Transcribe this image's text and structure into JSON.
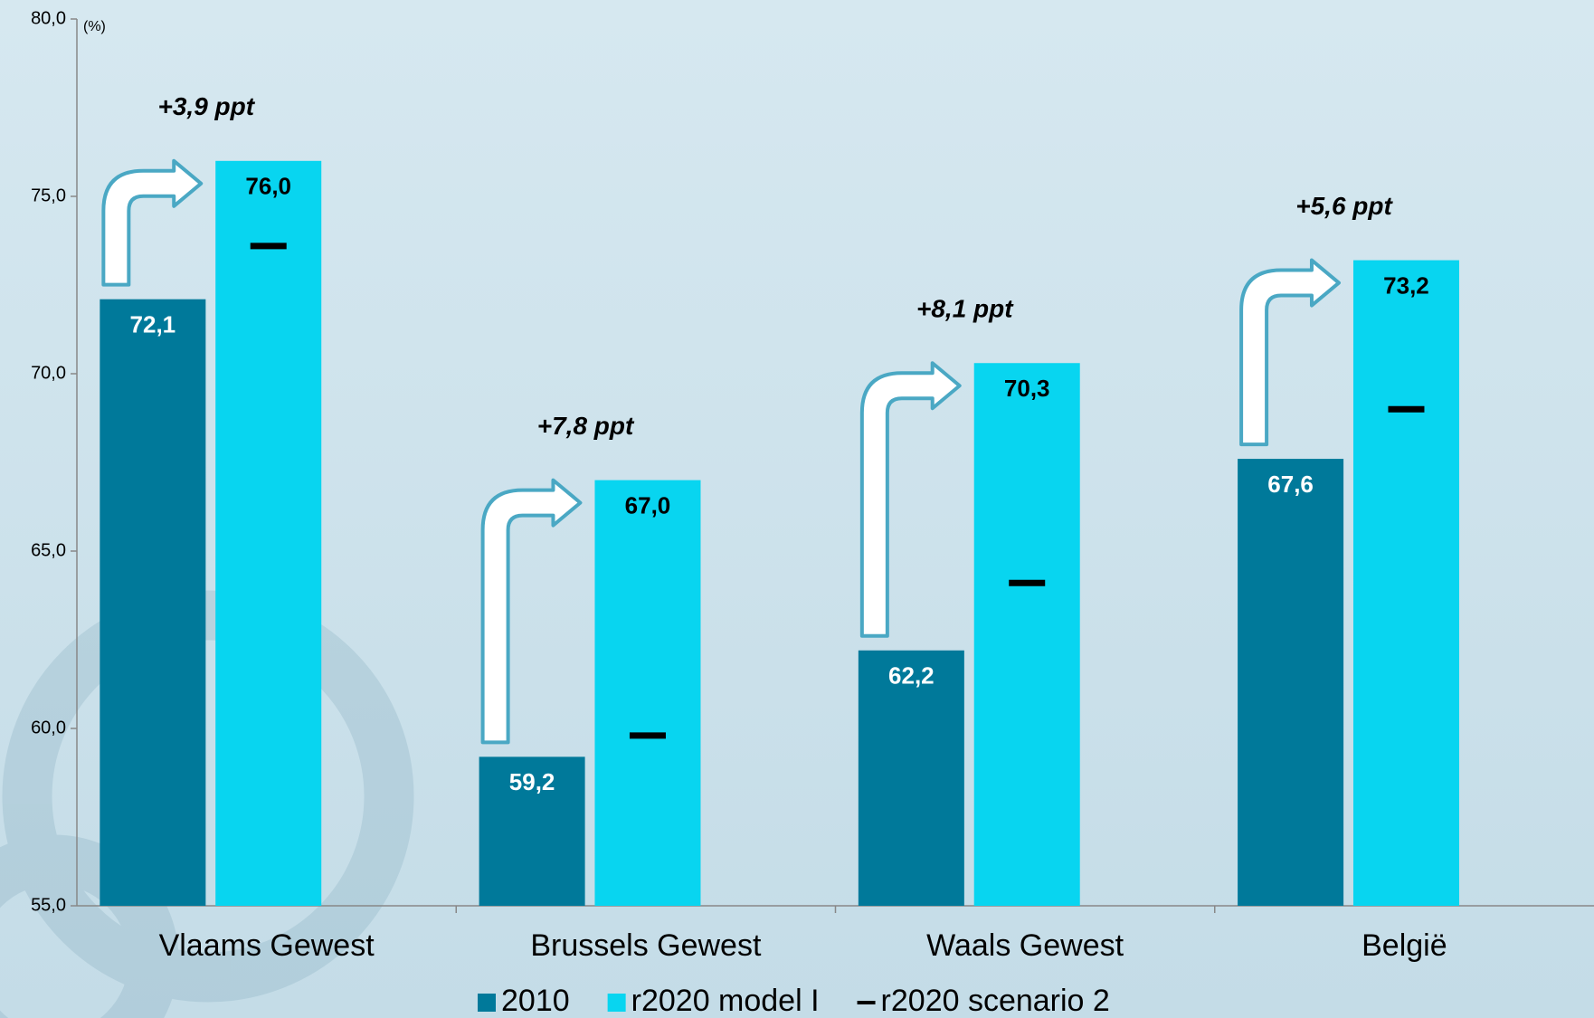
{
  "chart_data": {
    "type": "bar",
    "categories": [
      "Vlaams Gewest",
      "Brussels Gewest",
      "Waals Gewest",
      "België"
    ],
    "y_axis_label": "(%)",
    "series": [
      {
        "name": "2010",
        "color": "#00799a",
        "values": [
          72.1,
          59.2,
          62.2,
          67.6
        ],
        "value_labels": [
          "72,1",
          "59,2",
          "62,2",
          "67,6"
        ]
      },
      {
        "name": "r2020 model I",
        "color": "#08d5f0",
        "values": [
          76.0,
          67.0,
          70.3,
          73.2
        ],
        "value_labels": [
          "76,0",
          "67,0",
          "70,3",
          "73,2"
        ]
      },
      {
        "name": "r2020 scenario 2",
        "color": "#000000",
        "marker": "dash",
        "values": [
          73.6,
          59.8,
          64.1,
          69.0
        ]
      }
    ],
    "annotations": [
      "+3,9 ppt",
      "+7,8 ppt",
      "+8,1 ppt",
      "+5,6  ppt"
    ],
    "ylim": [
      55,
      80
    ],
    "yticks": [
      {
        "value": 55,
        "label": "55,0"
      },
      {
        "value": 60,
        "label": "60,0"
      },
      {
        "value": 65,
        "label": "65,0"
      },
      {
        "value": 70,
        "label": "70,0"
      },
      {
        "value": 75,
        "label": "75,0"
      },
      {
        "value": 80,
        "label": "80,0"
      }
    ],
    "grid": false
  }
}
